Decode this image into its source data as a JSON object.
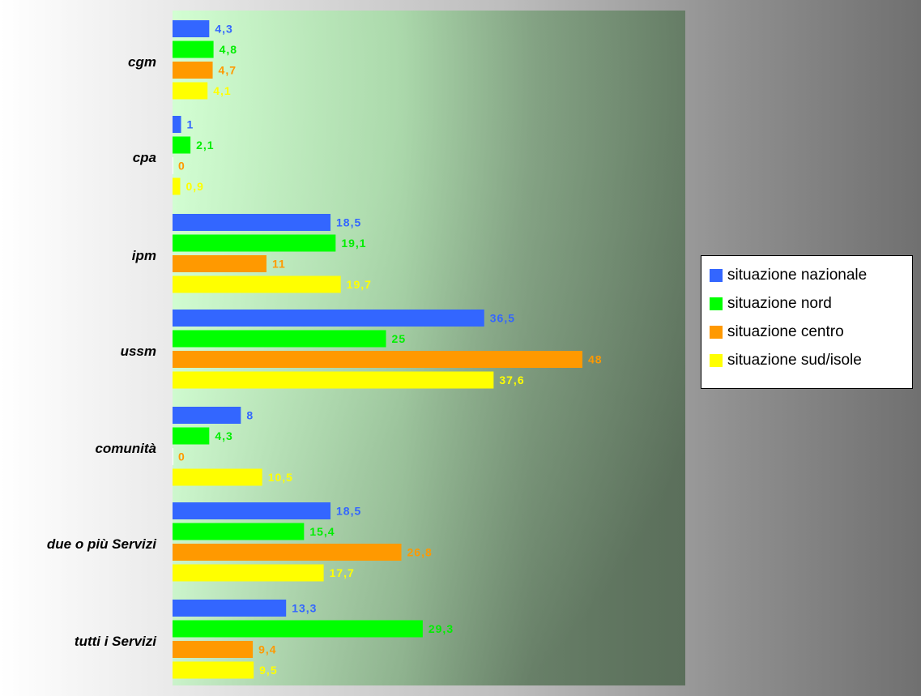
{
  "chart_data": {
    "type": "bar",
    "orientation": "horizontal",
    "categories": [
      "cgm",
      "cpa",
      "ipm",
      "ussm",
      "comunità",
      "due o più Servizi",
      "tutti i Servizi"
    ],
    "series": [
      {
        "name": "situazione nazionale",
        "color": "#3366ff",
        "values": [
          4.3,
          1,
          18.5,
          36.5,
          8,
          18.5,
          13.3
        ],
        "labels": [
          "4,3",
          "1",
          "18,5",
          "36,5",
          "8",
          "18,5",
          "13,3"
        ]
      },
      {
        "name": "situazione nord",
        "color": "#00ff00",
        "values": [
          4.8,
          2.1,
          19.1,
          25,
          4.3,
          15.4,
          29.3
        ],
        "labels": [
          "4,8",
          "2,1",
          "19,1",
          "25",
          "4,3",
          "15,4",
          "29,3"
        ]
      },
      {
        "name": "situazione centro",
        "color": "#ff9900",
        "values": [
          4.7,
          0,
          11,
          48,
          0,
          26.8,
          9.4
        ],
        "labels": [
          "4,7",
          "0",
          "11",
          "48",
          "0",
          "26,8",
          "9,4"
        ]
      },
      {
        "name": "situazione sud/isole",
        "color": "#ffff00",
        "values": [
          4.1,
          0.9,
          19.7,
          37.6,
          10.5,
          17.7,
          9.5
        ],
        "labels": [
          "4,1",
          "0,9",
          "19,7",
          "37,6",
          "10,5",
          "17,7",
          "9,5"
        ]
      }
    ],
    "xlim": [
      0,
      48
    ],
    "grid": false,
    "legend": "right",
    "plot_background": "gradient light green to dark grey-green"
  },
  "legend_items": [
    {
      "label": "situazione nazionale",
      "color": "#3366ff"
    },
    {
      "label": "situazione nord",
      "color": "#00ff00"
    },
    {
      "label": "situazione centro",
      "color": "#ff9900"
    },
    {
      "label": "situazione sud/isole",
      "color": "#ffff00"
    }
  ]
}
